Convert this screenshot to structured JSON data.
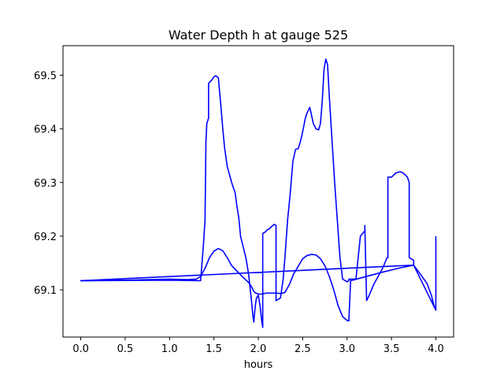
{
  "chart_data": {
    "type": "line",
    "title": "Water Depth h at gauge 525",
    "xlabel": "hours",
    "ylabel": "",
    "xlim": [
      -0.2,
      4.2
    ],
    "ylim": [
      69.012,
      69.555
    ],
    "grid": false,
    "legend": "none",
    "x_ticks": [
      {
        "value": 0.0,
        "label": "0.0"
      },
      {
        "value": 0.5,
        "label": "0.5"
      },
      {
        "value": 1.0,
        "label": "1.0"
      },
      {
        "value": 1.5,
        "label": "1.5"
      },
      {
        "value": 2.0,
        "label": "2.0"
      },
      {
        "value": 2.5,
        "label": "2.5"
      },
      {
        "value": 3.0,
        "label": "3.0"
      },
      {
        "value": 3.5,
        "label": "3.5"
      },
      {
        "value": 4.0,
        "label": "4.0"
      }
    ],
    "y_ticks": [
      {
        "value": 69.1,
        "label": "69.1"
      },
      {
        "value": 69.2,
        "label": "69.2"
      },
      {
        "value": 69.3,
        "label": "69.3"
      },
      {
        "value": 69.4,
        "label": "69.4"
      },
      {
        "value": 69.5,
        "label": "69.5"
      }
    ],
    "series": [
      {
        "color": "#0000ff",
        "x": [
          0.0,
          0.5,
          1.0,
          1.2,
          1.3,
          1.35,
          1.4,
          1.45,
          1.5,
          1.55,
          1.6,
          1.65,
          1.7,
          1.8,
          1.9,
          1.93,
          1.95,
          1.97,
          2.0,
          2.03,
          2.06,
          2.1,
          2.2,
          2.25,
          2.3,
          2.35,
          2.4,
          2.5,
          2.55,
          2.6,
          2.65,
          2.7,
          2.75,
          2.8,
          2.85,
          2.9,
          2.95,
          3.0,
          3.02,
          3.04,
          3.4,
          3.6,
          3.75,
          3.8,
          3.9,
          3.95,
          3.98,
          4.0
        ],
        "y": [
          69.117,
          69.118,
          69.12,
          69.119,
          69.12,
          69.125,
          69.14,
          69.16,
          69.172,
          69.177,
          69.173,
          69.16,
          69.145,
          69.128,
          69.112,
          69.104,
          69.097,
          69.094,
          69.092,
          69.092,
          69.093,
          69.094,
          69.094,
          69.093,
          69.095,
          69.11,
          69.13,
          69.158,
          69.164,
          69.166,
          69.165,
          69.158,
          69.145,
          69.125,
          69.1,
          69.07,
          69.05,
          69.043,
          69.042,
          69.117,
          69.133,
          69.141,
          69.146,
          69.135,
          69.112,
          69.09,
          69.07,
          69.062
        ]
      },
      {
        "color": "#0000ff",
        "x": [
          4.0,
          4.0,
          4.0,
          3.75,
          0.0,
          1.0,
          1.35,
          1.38,
          1.4,
          1.41,
          1.42,
          1.44,
          1.44,
          1.46,
          1.48,
          1.5,
          1.52,
          1.55,
          1.58,
          1.6,
          1.62,
          1.65,
          1.7,
          1.74,
          1.76,
          1.78,
          1.8,
          1.83,
          1.86,
          1.89,
          1.92,
          1.94,
          1.95,
          1.96,
          1.97,
          1.98,
          2.0,
          2.02,
          2.04,
          2.05,
          2.05,
          2.08,
          2.1,
          2.12,
          2.15,
          2.18,
          2.2,
          2.2,
          2.22,
          2.25,
          2.28,
          2.3,
          2.33,
          2.36,
          2.39,
          2.42,
          2.45,
          2.48,
          2.5,
          2.53,
          2.55,
          2.58,
          2.6,
          2.62,
          2.65,
          2.68,
          2.7,
          2.72,
          2.74,
          2.76,
          2.78,
          2.8,
          2.83,
          2.86,
          2.89,
          2.92,
          2.95,
          3.0,
          3.02,
          3.02,
          3.05,
          3.1,
          3.15,
          3.2,
          3.2,
          3.22,
          3.25,
          3.3,
          3.35,
          3.4,
          3.45,
          3.46,
          3.46,
          3.5,
          3.55,
          3.6,
          3.63,
          3.65,
          3.68,
          3.7,
          3.7,
          3.75,
          3.75
        ],
        "y": [
          69.2,
          69.195,
          69.062,
          69.146,
          69.117,
          69.118,
          69.117,
          69.18,
          69.23,
          69.375,
          69.41,
          69.42,
          69.485,
          69.488,
          69.492,
          69.497,
          69.499,
          69.495,
          69.44,
          69.4,
          69.365,
          69.33,
          69.3,
          69.28,
          69.255,
          69.235,
          69.2,
          69.18,
          69.16,
          69.13,
          69.085,
          69.05,
          69.04,
          69.06,
          69.075,
          69.085,
          69.09,
          69.07,
          69.04,
          69.03,
          69.205,
          69.208,
          69.212,
          69.213,
          69.218,
          69.222,
          69.22,
          69.08,
          69.082,
          69.085,
          69.12,
          69.16,
          69.23,
          69.28,
          69.34,
          69.362,
          69.363,
          69.38,
          69.395,
          69.42,
          69.43,
          69.44,
          69.425,
          69.41,
          69.4,
          69.398,
          69.41,
          69.45,
          69.51,
          69.53,
          69.52,
          69.46,
          69.38,
          69.3,
          69.23,
          69.16,
          69.12,
          69.115,
          69.117,
          69.12,
          69.12,
          69.12,
          69.2,
          69.21,
          69.22,
          69.08,
          69.09,
          69.11,
          69.125,
          69.14,
          69.16,
          69.16,
          69.31,
          69.31,
          69.318,
          69.32,
          69.318,
          69.315,
          69.31,
          69.3,
          69.16,
          69.155,
          69.146
        ]
      }
    ]
  }
}
